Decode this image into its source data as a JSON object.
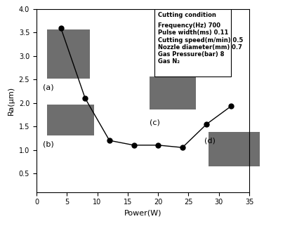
{
  "chart_data": {
    "type": "line",
    "x_label": "Power(W)",
    "y_label": "Ra(μm)",
    "x": [
      4,
      8,
      12,
      16,
      20,
      24,
      28,
      32
    ],
    "series": [
      {
        "name": "Ra",
        "color": "#000000",
        "marker": "o",
        "line_style": "solid",
        "values": [
          3.6,
          2.1,
          1.2,
          1.1,
          1.1,
          1.05,
          1.55,
          1.93
        ]
      }
    ],
    "xlim": [
      0,
      35
    ],
    "xticks": [
      0,
      5,
      10,
      15,
      20,
      25,
      30,
      35
    ],
    "ylim": [
      0.1,
      4.0
    ],
    "yticks": [
      0.5,
      1.0,
      1.5,
      2.0,
      2.5,
      3.0,
      3.5,
      4.0
    ],
    "grid": false,
    "conditions": {
      "title": "Cutting condition",
      "lines": [
        "Frequency(Hz) 700",
        "Pulse width(ms) 0.11",
        "Cutting speed(m/min) 0.5",
        "Nozzle diameter(mm) 0.7",
        "Gas Pressure(bar) 8",
        "Gas N₂"
      ]
    },
    "image_labels": [
      "(a)",
      "(b)",
      "(c)",
      "(d)"
    ]
  }
}
